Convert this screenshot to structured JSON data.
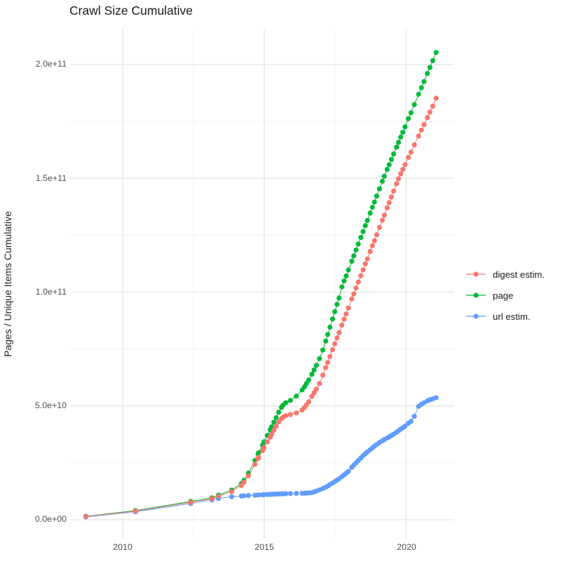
{
  "chart_data": {
    "type": "line",
    "title": "Crawl Size Cumulative",
    "xlabel": "",
    "ylabel": "Pages / Unique Items Cumulative",
    "value_unit": "pages (values given in billions, i.e. multiply by 1e9)",
    "x_range": [
      2008.1,
      2021.7
    ],
    "y_range_B": [
      -9,
      215
    ],
    "grid": "major and minor, light gray on white, no axis lines",
    "legend_position": "right",
    "x_ticks": {
      "major": [
        2010,
        2015,
        2020
      ],
      "minor": [
        2012.5,
        2017.5
      ],
      "labels": [
        "2010",
        "2015",
        "2020"
      ]
    },
    "y_ticks": {
      "major_B": [
        0,
        50,
        100,
        150,
        200
      ],
      "minor_B": [
        25,
        75,
        125,
        175
      ],
      "labels": [
        "0.0e+00",
        "5.0e+10",
        "1.0e+11",
        "1.5e+11",
        "2.0e+11"
      ]
    },
    "series": [
      {
        "id": "digest-estim",
        "name": "digest estim.",
        "color": "#F8766D",
        "points": [
          [
            2008.7,
            1.4
          ],
          [
            2010.45,
            3.8
          ],
          [
            2012.4,
            7.6
          ],
          [
            2013.15,
            9.2
          ],
          [
            2013.38,
            10.3
          ],
          [
            2013.85,
            12.4
          ],
          [
            2014.19,
            15.0
          ],
          [
            2014.28,
            16.4
          ],
          [
            2014.44,
            19.3
          ],
          [
            2014.67,
            24.3
          ],
          [
            2014.78,
            26.8
          ],
          [
            2014.8,
            27.4
          ],
          [
            2014.94,
            30.4
          ],
          [
            2014.99,
            31.7
          ],
          [
            2015.11,
            34.2
          ],
          [
            2015.21,
            36.3
          ],
          [
            2015.26,
            37.5
          ],
          [
            2015.34,
            39.3
          ],
          [
            2015.42,
            41.0
          ],
          [
            2015.51,
            43.0
          ],
          [
            2015.61,
            44.4
          ],
          [
            2015.66,
            45.0
          ],
          [
            2015.76,
            45.7
          ],
          [
            2015.92,
            46.2
          ],
          [
            2016.13,
            46.9
          ],
          [
            2016.34,
            48.2
          ],
          [
            2016.42,
            49.3
          ],
          [
            2016.49,
            50.4
          ],
          [
            2016.57,
            51.8
          ],
          [
            2016.68,
            54.2
          ],
          [
            2016.76,
            55.8
          ],
          [
            2016.84,
            57.4
          ],
          [
            2016.95,
            59.8
          ],
          [
            2017.07,
            63.5
          ],
          [
            2017.17,
            66.8
          ],
          [
            2017.24,
            69.1
          ],
          [
            2017.32,
            71.7
          ],
          [
            2017.41,
            74.7
          ],
          [
            2017.49,
            77.3
          ],
          [
            2017.57,
            79.9
          ],
          [
            2017.64,
            82.2
          ],
          [
            2017.74,
            85.5
          ],
          [
            2017.82,
            88.1
          ],
          [
            2017.89,
            90.4
          ],
          [
            2017.97,
            93.0
          ],
          [
            2018.09,
            97.0
          ],
          [
            2018.16,
            99.2
          ],
          [
            2018.24,
            101.8
          ],
          [
            2018.32,
            104.4
          ],
          [
            2018.41,
            107.2
          ],
          [
            2018.49,
            109.8
          ],
          [
            2018.57,
            112.4
          ],
          [
            2018.64,
            114.6
          ],
          [
            2018.74,
            117.8
          ],
          [
            2018.82,
            120.4
          ],
          [
            2018.89,
            122.6
          ],
          [
            2018.97,
            125.2
          ],
          [
            2019.07,
            128.4
          ],
          [
            2019.17,
            131.6
          ],
          [
            2019.24,
            133.8
          ],
          [
            2019.34,
            137.0
          ],
          [
            2019.41,
            139.3
          ],
          [
            2019.49,
            141.8
          ],
          [
            2019.57,
            144.4
          ],
          [
            2019.67,
            147.6
          ],
          [
            2019.74,
            149.8
          ],
          [
            2019.82,
            152.0
          ],
          [
            2019.89,
            153.9
          ],
          [
            2019.97,
            156.0
          ],
          [
            2020.09,
            159.2
          ],
          [
            2020.18,
            161.5
          ],
          [
            2020.3,
            164.7
          ],
          [
            2020.45,
            168.6
          ],
          [
            2020.55,
            171.2
          ],
          [
            2020.64,
            173.6
          ],
          [
            2020.76,
            176.7
          ],
          [
            2020.85,
            179.1
          ],
          [
            2020.95,
            181.7
          ],
          [
            2021.07,
            185.2
          ]
        ]
      },
      {
        "id": "page",
        "name": "page",
        "color": "#00BA38",
        "points": [
          [
            2008.7,
            1.5
          ],
          [
            2010.45,
            4.0
          ],
          [
            2012.4,
            8.0
          ],
          [
            2013.15,
            9.6
          ],
          [
            2013.38,
            10.8
          ],
          [
            2013.85,
            13.0
          ],
          [
            2014.19,
            15.8
          ],
          [
            2014.28,
            17.3
          ],
          [
            2014.44,
            20.5
          ],
          [
            2014.67,
            26.0
          ],
          [
            2014.78,
            28.8
          ],
          [
            2014.8,
            29.4
          ],
          [
            2014.94,
            32.8
          ],
          [
            2014.99,
            34.2
          ],
          [
            2015.11,
            37.0
          ],
          [
            2015.21,
            39.5
          ],
          [
            2015.26,
            40.8
          ],
          [
            2015.34,
            42.8
          ],
          [
            2015.42,
            44.8
          ],
          [
            2015.51,
            47.2
          ],
          [
            2015.61,
            49.3
          ],
          [
            2015.66,
            50.3
          ],
          [
            2015.76,
            51.4
          ],
          [
            2015.92,
            52.4
          ],
          [
            2016.13,
            54.3
          ],
          [
            2016.34,
            57.0
          ],
          [
            2016.42,
            58.4
          ],
          [
            2016.49,
            59.8
          ],
          [
            2016.57,
            61.4
          ],
          [
            2016.68,
            63.9
          ],
          [
            2016.76,
            65.8
          ],
          [
            2016.84,
            67.8
          ],
          [
            2016.95,
            70.8
          ],
          [
            2017.07,
            74.5
          ],
          [
            2017.17,
            78.5
          ],
          [
            2017.24,
            81.4
          ],
          [
            2017.32,
            84.6
          ],
          [
            2017.41,
            88.2
          ],
          [
            2017.49,
            91.4
          ],
          [
            2017.57,
            94.6
          ],
          [
            2017.64,
            97.4
          ],
          [
            2017.74,
            102.3
          ],
          [
            2017.82,
            104.9
          ],
          [
            2017.89,
            107.1
          ],
          [
            2017.97,
            109.7
          ],
          [
            2018.09,
            113.6
          ],
          [
            2018.16,
            115.9
          ],
          [
            2018.24,
            118.5
          ],
          [
            2018.32,
            121.1
          ],
          [
            2018.41,
            124.0
          ],
          [
            2018.49,
            126.6
          ],
          [
            2018.57,
            129.2
          ],
          [
            2018.64,
            131.5
          ],
          [
            2018.74,
            134.7
          ],
          [
            2018.82,
            137.3
          ],
          [
            2018.89,
            139.6
          ],
          [
            2018.97,
            142.2
          ],
          [
            2019.07,
            145.4
          ],
          [
            2019.17,
            148.7
          ],
          [
            2019.24,
            150.9
          ],
          [
            2019.34,
            153.9
          ],
          [
            2019.41,
            156.0
          ],
          [
            2019.49,
            158.3
          ],
          [
            2019.57,
            160.7
          ],
          [
            2019.67,
            163.7
          ],
          [
            2019.74,
            165.8
          ],
          [
            2019.82,
            168.1
          ],
          [
            2019.89,
            170.2
          ],
          [
            2019.97,
            172.6
          ],
          [
            2020.09,
            176.2
          ],
          [
            2020.18,
            178.8
          ],
          [
            2020.3,
            182.4
          ],
          [
            2020.45,
            186.9
          ],
          [
            2020.55,
            189.8
          ],
          [
            2020.64,
            192.5
          ],
          [
            2020.76,
            196.1
          ],
          [
            2020.85,
            198.7
          ],
          [
            2020.95,
            201.7
          ],
          [
            2021.07,
            205.3
          ]
        ]
      },
      {
        "id": "url-estim",
        "name": "url estim.",
        "color": "#619CFF",
        "points": [
          [
            2008.7,
            1.2
          ],
          [
            2010.45,
            3.5
          ],
          [
            2012.4,
            7.1
          ],
          [
            2013.15,
            8.7
          ],
          [
            2013.38,
            9.3
          ],
          [
            2013.85,
            10.1
          ],
          [
            2014.19,
            10.4
          ],
          [
            2014.28,
            10.5
          ],
          [
            2014.44,
            10.6
          ],
          [
            2014.67,
            10.75
          ],
          [
            2014.78,
            10.85
          ],
          [
            2014.8,
            10.87
          ],
          [
            2014.94,
            10.95
          ],
          [
            2014.99,
            11.0
          ],
          [
            2015.11,
            11.05
          ],
          [
            2015.21,
            11.1
          ],
          [
            2015.26,
            11.15
          ],
          [
            2015.34,
            11.2
          ],
          [
            2015.42,
            11.25
          ],
          [
            2015.51,
            11.3
          ],
          [
            2015.61,
            11.35
          ],
          [
            2015.66,
            11.38
          ],
          [
            2015.76,
            11.42
          ],
          [
            2015.92,
            11.48
          ],
          [
            2016.13,
            11.55
          ],
          [
            2016.34,
            11.62
          ],
          [
            2016.42,
            11.66
          ],
          [
            2016.49,
            11.7
          ],
          [
            2016.57,
            11.75
          ],
          [
            2016.68,
            11.85
          ],
          [
            2016.76,
            12.2
          ],
          [
            2016.84,
            12.6
          ],
          [
            2016.95,
            13.1
          ],
          [
            2017.07,
            13.7
          ],
          [
            2017.17,
            14.3
          ],
          [
            2017.24,
            14.8
          ],
          [
            2017.32,
            15.4
          ],
          [
            2017.41,
            16.1
          ],
          [
            2017.49,
            16.7
          ],
          [
            2017.57,
            17.4
          ],
          [
            2017.64,
            18.0
          ],
          [
            2017.74,
            18.9
          ],
          [
            2017.82,
            19.7
          ],
          [
            2017.89,
            20.4
          ],
          [
            2017.97,
            21.2
          ],
          [
            2018.09,
            23.0
          ],
          [
            2018.16,
            24.0
          ],
          [
            2018.24,
            25.0
          ],
          [
            2018.32,
            26.0
          ],
          [
            2018.41,
            27.1
          ],
          [
            2018.49,
            28.1
          ],
          [
            2018.57,
            29.0
          ],
          [
            2018.64,
            29.8
          ],
          [
            2018.74,
            30.8
          ],
          [
            2018.82,
            31.6
          ],
          [
            2018.89,
            32.3
          ],
          [
            2018.97,
            33.0
          ],
          [
            2019.07,
            33.9
          ],
          [
            2019.17,
            34.7
          ],
          [
            2019.24,
            35.2
          ],
          [
            2019.34,
            35.9
          ],
          [
            2019.41,
            36.4
          ],
          [
            2019.49,
            37.0
          ],
          [
            2019.57,
            37.6
          ],
          [
            2019.67,
            38.4
          ],
          [
            2019.74,
            39.0
          ],
          [
            2019.82,
            39.8
          ],
          [
            2019.89,
            40.4
          ],
          [
            2019.97,
            41.1
          ],
          [
            2020.09,
            42.3
          ],
          [
            2020.18,
            43.2
          ],
          [
            2020.3,
            45.5
          ],
          [
            2020.45,
            49.8
          ],
          [
            2020.55,
            50.7
          ],
          [
            2020.64,
            51.4
          ],
          [
            2020.76,
            52.2
          ],
          [
            2020.85,
            52.7
          ],
          [
            2020.95,
            53.1
          ],
          [
            2021.07,
            53.6
          ]
        ]
      }
    ]
  }
}
